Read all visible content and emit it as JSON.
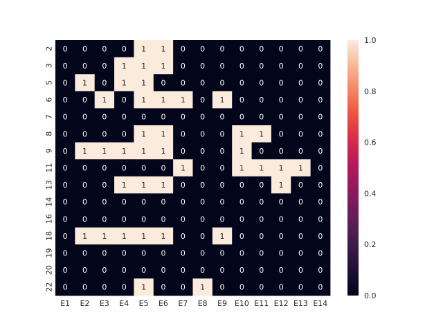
{
  "chart_data": {
    "type": "heatmap",
    "title": "",
    "xlabel": "",
    "ylabel": "",
    "x_categories": [
      "E1",
      "E2",
      "E3",
      "E4",
      "E5",
      "E6",
      "E7",
      "E8",
      "E9",
      "E10",
      "E11",
      "E12",
      "E13",
      "E14"
    ],
    "y_categories": [
      "2",
      "3",
      "5",
      "6",
      "7",
      "8",
      "9",
      "11",
      "13",
      "14",
      "16",
      "18",
      "19",
      "20",
      "22"
    ],
    "values": [
      [
        0,
        0,
        0,
        0,
        1,
        1,
        0,
        0,
        0,
        0,
        0,
        0,
        0,
        0
      ],
      [
        0,
        0,
        0,
        1,
        1,
        1,
        0,
        0,
        0,
        0,
        0,
        0,
        0,
        0
      ],
      [
        0,
        1,
        0,
        1,
        1,
        0,
        0,
        0,
        0,
        0,
        0,
        0,
        0,
        0
      ],
      [
        0,
        0,
        1,
        0,
        1,
        1,
        1,
        0,
        1,
        0,
        0,
        0,
        0,
        0
      ],
      [
        0,
        0,
        0,
        0,
        0,
        0,
        0,
        0,
        0,
        0,
        0,
        0,
        0,
        0
      ],
      [
        0,
        0,
        0,
        0,
        1,
        1,
        0,
        0,
        0,
        1,
        1,
        0,
        0,
        0
      ],
      [
        0,
        1,
        1,
        1,
        1,
        1,
        0,
        0,
        0,
        1,
        0,
        0,
        0,
        0
      ],
      [
        0,
        0,
        0,
        0,
        0,
        0,
        1,
        0,
        0,
        1,
        1,
        1,
        1,
        0
      ],
      [
        0,
        0,
        0,
        1,
        1,
        1,
        0,
        0,
        0,
        0,
        0,
        1,
        0,
        0
      ],
      [
        0,
        0,
        0,
        0,
        0,
        0,
        0,
        0,
        0,
        0,
        0,
        0,
        0,
        0
      ],
      [
        0,
        0,
        0,
        0,
        0,
        0,
        0,
        0,
        0,
        0,
        0,
        0,
        0,
        0
      ],
      [
        0,
        1,
        1,
        1,
        1,
        1,
        0,
        0,
        1,
        0,
        0,
        0,
        0,
        0
      ],
      [
        0,
        0,
        0,
        0,
        0,
        0,
        0,
        0,
        0,
        0,
        0,
        0,
        0,
        0
      ],
      [
        0,
        0,
        0,
        0,
        0,
        0,
        0,
        0,
        0,
        0,
        0,
        0,
        0,
        0
      ],
      [
        0,
        0,
        0,
        0,
        1,
        0,
        0,
        1,
        0,
        0,
        0,
        0,
        0,
        0
      ]
    ],
    "colorbar": {
      "min": 0.0,
      "max": 1.0,
      "ticks": [
        "0.0",
        "0.2",
        "0.4",
        "0.6",
        "0.8",
        "1.0"
      ],
      "low_color": "#03051a",
      "high_color": "#faebdd"
    },
    "annotation_colors": {
      "on_dark": "#ffffff",
      "on_light": "#262626"
    },
    "grid": false
  }
}
